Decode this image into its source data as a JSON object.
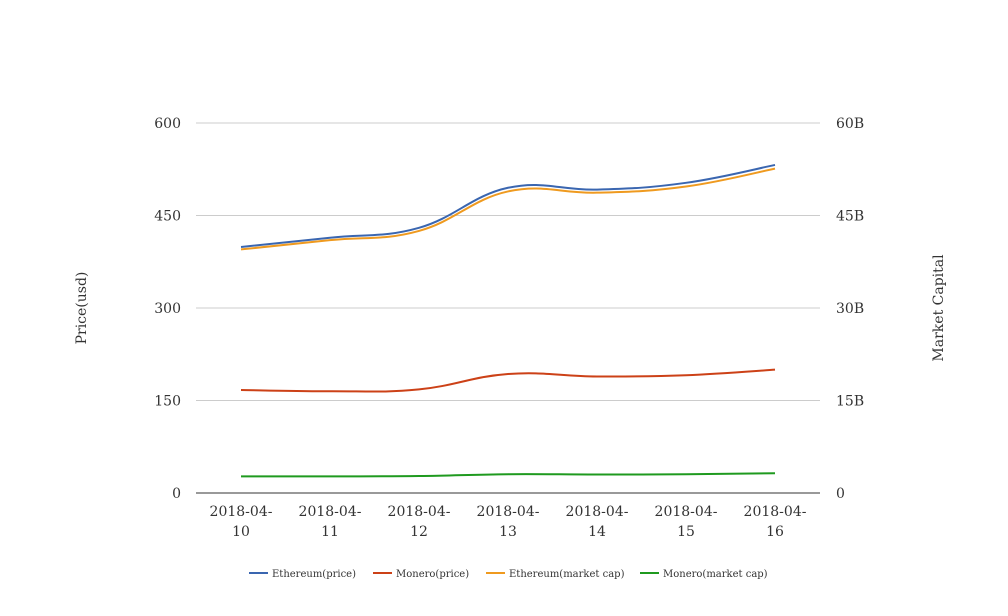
{
  "chart_data": {
    "type": "line",
    "categories": [
      [
        "2018-04-",
        "10"
      ],
      [
        "2018-04-",
        "11"
      ],
      [
        "2018-04-",
        "12"
      ],
      [
        "2018-04-",
        "13"
      ],
      [
        "2018-04-",
        "14"
      ],
      [
        "2018-04-",
        "15"
      ],
      [
        "2018-04-",
        "16"
      ]
    ],
    "ylabel": "Price(usd)",
    "y2label": "Market Capital",
    "ylim": [
      0,
      600
    ],
    "y2lim": [
      0,
      60000000000
    ],
    "yticks": [
      "0",
      "150",
      "300",
      "450",
      "600"
    ],
    "y2ticks": [
      "0",
      "15B",
      "30B",
      "45B",
      "60B"
    ],
    "grid": true,
    "legend_position": "bottom",
    "series": [
      {
        "name": "Ethereum(price)",
        "axis": "left",
        "color": "#3a66b0",
        "values": [
          399,
          414,
          430,
          495,
          492,
          503,
          532
        ]
      },
      {
        "name": "Monero(price)",
        "axis": "left",
        "color": "#cc4117",
        "values": [
          167,
          165,
          168,
          193,
          189,
          191,
          200
        ]
      },
      {
        "name": "Ethereum(market cap)",
        "axis": "right",
        "color": "#ef9a1f",
        "values": [
          39500000000,
          41000000000,
          42500000000,
          48900000000,
          48700000000,
          49700000000,
          52600000000
        ]
      },
      {
        "name": "Monero(market cap)",
        "axis": "right",
        "color": "#1f9a1f",
        "values": [
          2700000000,
          2700000000,
          2750000000,
          3050000000,
          3000000000,
          3050000000,
          3200000000
        ]
      }
    ]
  }
}
